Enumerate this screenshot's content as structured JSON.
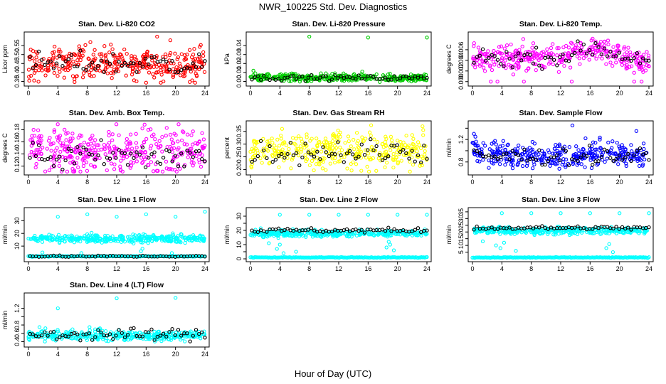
{
  "figure": {
    "title": "NWR_100225  Std. Dev. Diagnostics",
    "xlabel": "Hour of Day (UTC)"
  },
  "chart_data": [
    {
      "type": "scatter",
      "title": "Stan. Dev. Li-820 CO2",
      "ylabel": "Licor ppm",
      "color": "#ff0000",
      "xlim": [
        0,
        24
      ],
      "xticks": [
        0,
        4,
        8,
        12,
        16,
        20,
        24
      ],
      "ylim": [
        0.34,
        0.61
      ],
      "yticks": [
        0.35,
        0.4,
        0.45,
        0.5,
        0.55
      ],
      "ytick_labels": [
        "0.35",
        "0.40",
        "0.45",
        "0.50",
        "0.55"
      ],
      "base": 0.45,
      "spread": 0.045,
      "black_base": 0.45,
      "outliers": [
        [
          17.5,
          0.6
        ],
        [
          16,
          0.34
        ],
        [
          19.3,
          0.58
        ]
      ]
    },
    {
      "type": "scatter",
      "title": "Stan. Dev. Li-820 Pressure",
      "ylabel": "kPa",
      "color": "#00cc00",
      "xlim": [
        0,
        24
      ],
      "xticks": [
        0,
        4,
        8,
        12,
        16,
        20,
        24
      ],
      "ylim": [
        -0.002,
        0.052
      ],
      "yticks": [
        0.0,
        0.01,
        0.02,
        0.03,
        0.04
      ],
      "ytick_labels": [
        "0.00",
        "0.01",
        "0.02",
        "0.03",
        "0.04"
      ],
      "base": 0.004,
      "spread": 0.002,
      "black_base": 0.004,
      "outliers": [
        [
          8,
          0.05
        ],
        [
          16,
          0.049
        ],
        [
          24,
          0.049
        ],
        [
          0.4,
          0.012
        ],
        [
          11.5,
          0.009
        ],
        [
          15.2,
          0.011
        ]
      ]
    },
    {
      "type": "scatter",
      "title": "Stan. Dev. Li-820 Temp.",
      "ylabel": "degrees C",
      "color": "#ff00ff",
      "xlim": [
        0,
        24
      ],
      "xticks": [
        0,
        4,
        8,
        12,
        16,
        20,
        24
      ],
      "ylim": [
        -0.0003,
        0.0088
      ],
      "yticks": [
        0.0,
        0.002,
        0.004,
        0.006
      ],
      "ytick_labels": [
        "0.000",
        "0.002",
        "0.004",
        "0.006"
      ],
      "base": 0.0045,
      "spread": 0.0012,
      "black_base": 0.0045,
      "outliers": [
        [
          2.5,
          0.0
        ],
        [
          3.4,
          0.0
        ],
        [
          7,
          0.0
        ],
        [
          13.5,
          0.0
        ],
        [
          22,
          0.0
        ],
        [
          23,
          0.0
        ]
      ]
    },
    {
      "type": "scatter",
      "title": "Stan. Dev. Amb. Box Temp.",
      "ylabel": "degrees C",
      "color": "#ff00ff",
      "xlim": [
        0,
        24
      ],
      "xticks": [
        0,
        4,
        8,
        12,
        16,
        20,
        24
      ],
      "ylim": [
        0.11,
        0.19
      ],
      "yticks": [
        0.12,
        0.14,
        0.16,
        0.18
      ],
      "ytick_labels": [
        "0.12",
        "0.14",
        "0.16",
        "0.18"
      ],
      "base": 0.145,
      "spread": 0.018,
      "black_base": 0.135,
      "outliers": [
        [
          18.8,
          0.183
        ],
        [
          0.7,
          0.18
        ]
      ]
    },
    {
      "type": "scatter",
      "title": "Stan. Dev. Gas Stream RH",
      "ylabel": "percent",
      "color": "#ffff00",
      "xlim": [
        0,
        24
      ],
      "xticks": [
        0,
        4,
        8,
        12,
        16,
        20,
        24
      ],
      "ylim": [
        0.19,
        0.38
      ],
      "yticks": [
        0.2,
        0.25,
        0.3,
        0.35
      ],
      "ytick_labels": [
        "0.20",
        "0.25",
        "0.30",
        "0.35"
      ],
      "base": 0.275,
      "spread": 0.035,
      "black_base": 0.27,
      "outliers": [
        [
          4.3,
          0.36
        ],
        [
          23.4,
          0.37
        ]
      ]
    },
    {
      "type": "scatter",
      "title": "Stan. Dev. Sample Flow",
      "ylabel": "ml/min",
      "color": "#0000ff",
      "xlim": [
        0,
        24
      ],
      "xticks": [
        0,
        4,
        8,
        12,
        16,
        20,
        24
      ],
      "ylim": [
        0.62,
        1.48
      ],
      "yticks": [
        0.8,
        1.0,
        1.2,
        1.4
      ],
      "ytick_labels": [
        "0.8",
        "",
        "1.2",
        ""
      ],
      "base": 0.92,
      "spread": 0.11,
      "black_base": 0.9,
      "outliers": [
        [
          0.2,
          1.3
        ],
        [
          0.4,
          1.25
        ],
        [
          13.6,
          1.45
        ],
        [
          22.3,
          1.35
        ]
      ]
    },
    {
      "type": "scatter",
      "title": "Stan. Dev. Line 1 Flow",
      "ylabel": "ml/min",
      "color": "#00ffff",
      "xlim": [
        0,
        24
      ],
      "xticks": [
        0,
        4,
        8,
        12,
        16,
        20,
        24
      ],
      "ylim": [
        0,
        38
      ],
      "yticks": [
        10,
        20,
        30
      ],
      "ytick_labels": [
        "10",
        "20",
        "30"
      ],
      "base": 16,
      "spread": 1.5,
      "black_base": 2,
      "black_spread": 0.3,
      "low_band": 2,
      "outliers": [
        [
          4,
          33
        ],
        [
          8,
          35
        ],
        [
          12,
          33
        ],
        [
          16,
          35
        ],
        [
          20,
          33
        ],
        [
          24,
          37
        ],
        [
          1.9,
          5
        ],
        [
          7.2,
          4.5
        ],
        [
          15.3,
          6
        ],
        [
          15.5,
          8
        ],
        [
          19.5,
          4.5
        ]
      ]
    },
    {
      "type": "scatter",
      "title": "Stan. Dev. Line 2 Flow",
      "ylabel": "ml/min",
      "color": "#00ffff",
      "xlim": [
        0,
        24
      ],
      "xticks": [
        0,
        4,
        8,
        12,
        16,
        20,
        24
      ],
      "ylim": [
        0,
        34
      ],
      "yticks": [
        0,
        5,
        10,
        15,
        20,
        25,
        30
      ],
      "ytick_labels": [
        "0",
        "",
        "10",
        "",
        "20",
        "",
        "30"
      ],
      "base": 18,
      "spread": 1.2,
      "black_base": 20,
      "black_spread": 0.8,
      "low_band": 1,
      "outliers": [
        [
          4,
          31
        ],
        [
          8,
          31
        ],
        [
          12,
          31
        ],
        [
          16,
          31
        ],
        [
          20,
          31
        ],
        [
          24,
          31
        ],
        [
          2.5,
          11
        ],
        [
          3.6,
          7
        ],
        [
          4,
          10
        ],
        [
          4.5,
          4
        ],
        [
          18.5,
          8
        ],
        [
          19,
          10
        ],
        [
          19.5,
          6
        ],
        [
          18.8,
          12
        ],
        [
          6.2,
          5
        ]
      ]
    },
    {
      "type": "scatter",
      "title": "Stan. Dev. Line 3 Flow",
      "ylabel": "ml/min",
      "color": "#00ffff",
      "xlim": [
        0,
        24
      ],
      "xticks": [
        0,
        4,
        8,
        12,
        16,
        20,
        24
      ],
      "ylim": [
        0,
        36
      ],
      "yticks": [
        5,
        10,
        15,
        20,
        25,
        30,
        35
      ],
      "ytick_labels": [
        "5",
        "10",
        "15",
        "20",
        "25",
        "30",
        "35"
      ],
      "base": 21,
      "spread": 1.3,
      "black_base": 23,
      "black_spread": 0.7,
      "low_band": 1,
      "outliers": [
        [
          4,
          34
        ],
        [
          8,
          34
        ],
        [
          12,
          34
        ],
        [
          16,
          34
        ],
        [
          20,
          34
        ],
        [
          24,
          34
        ],
        [
          3.2,
          10
        ],
        [
          3.8,
          8
        ],
        [
          4.3,
          12
        ],
        [
          5.9,
          6
        ],
        [
          18.2,
          8
        ],
        [
          18.6,
          11
        ],
        [
          19.1,
          5
        ],
        [
          1.4,
          13
        ]
      ]
    },
    {
      "type": "scatter",
      "title": "Stan. Dev. Line 4 (LT) Flow",
      "ylabel": "ml/min",
      "color": "#00ffff",
      "xlim": [
        0,
        24
      ],
      "xticks": [
        0,
        4,
        8,
        12,
        16,
        20,
        24
      ],
      "ylim": [
        0.34,
        1.5
      ],
      "yticks": [
        0.4,
        0.6,
        0.8,
        1.0,
        1.2
      ],
      "ytick_labels": [
        "0.4",
        "0.6",
        "0.8",
        "",
        "1.2"
      ],
      "base": 0.55,
      "spread": 0.06,
      "black_base": 0.57,
      "black_spread": 0.07,
      "outliers": [
        [
          4,
          1.2
        ],
        [
          12,
          1.44
        ],
        [
          20,
          1.45
        ],
        [
          1.5,
          0.75
        ],
        [
          2.3,
          0.72
        ],
        [
          8.3,
          0.75
        ]
      ]
    }
  ]
}
